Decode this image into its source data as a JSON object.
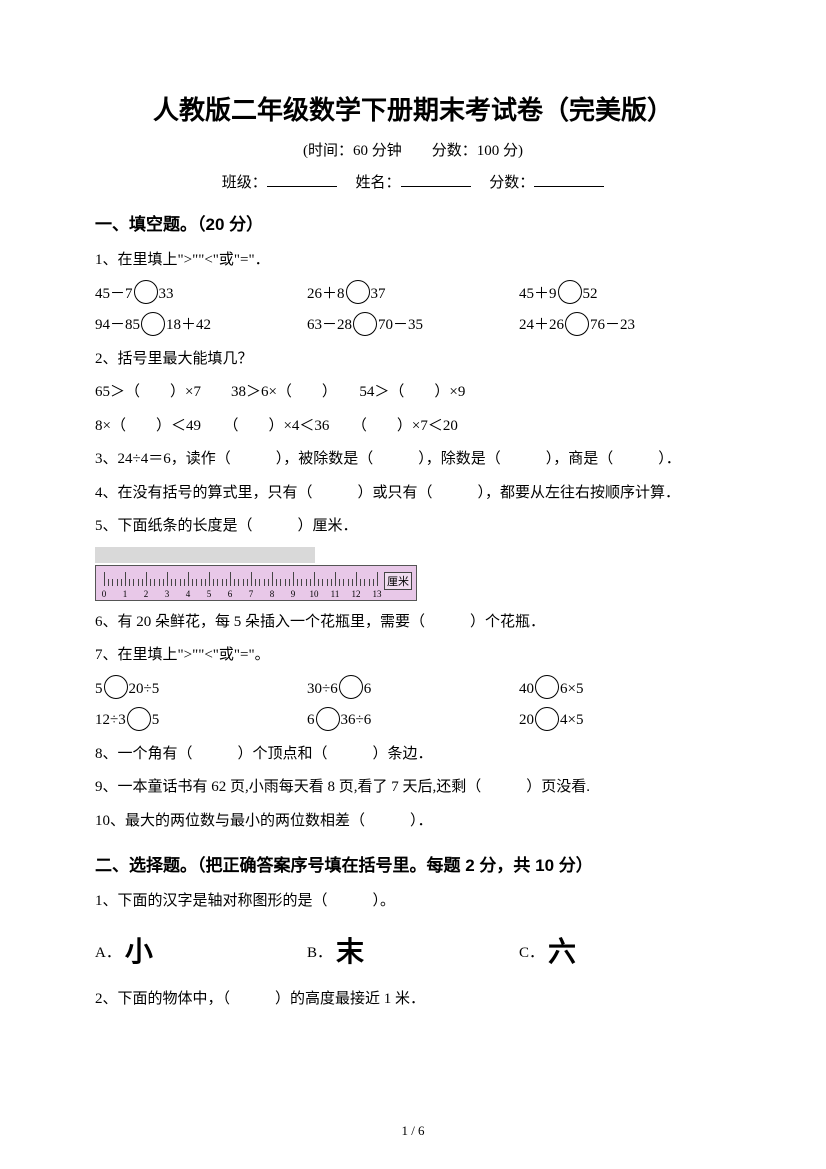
{
  "title": "人教版二年级数学下册期末考试卷（完美版）",
  "subtitle": "(时间：60 分钟　　分数：100 分)",
  "info": {
    "class": "班级：",
    "name": "姓名：",
    "score": "分数："
  },
  "s1": {
    "heading": "一、填空题。（20 分）",
    "q1": {
      "stem": "1、在里填上\">\"\"<\"或\"=\"．",
      "r1a": "45－7",
      "r1b": "33",
      "r1c": "26＋8",
      "r1d": "37",
      "r1e": "45＋9",
      "r1f": "52",
      "r2a": "94－85",
      "r2b": "18＋42",
      "r2c": "63－28",
      "r2d": "70－35",
      "r2e": "24＋26",
      "r2f": "76－23"
    },
    "q2": {
      "stem": "2、括号里最大能填几？",
      "l1": "65＞（　　）×7　　38＞6×（　　）　　54＞（　　）×9",
      "l2": "8×（　　）＜49　　（　　）×4＜36　　（　　）×7＜20"
    },
    "q3": "3、24÷4＝6，读作（　　　），被除数是（　　　），除数是（　　　），商是（　　　）．",
    "q4": "4、在没有括号的算式里，只有（　　　）或只有（　　　），都要从左往右按顺序计算．",
    "q5": "5、下面纸条的长度是（　　　）厘米．",
    "q6": " 6、有 20 朵鲜花，每 5 朵插入一个花瓶里，需要（　　　）个花瓶．",
    "q7": {
      "stem": "7、在里填上\">\"\"<\"或\"=\"。",
      "r1a": "5",
      "r1b": "20÷5",
      "r1c": "30÷6",
      "r1d": "6",
      "r1e": "40",
      "r1f": "6×5",
      "r2a": "12÷3",
      "r2b": "5",
      "r2c": "6",
      "r2d": "36÷6",
      "r2e": "20",
      "r2f": "4×5"
    },
    "q8": "8、一个角有（　　　）个顶点和（　　　）条边．",
    "q9": "9、一本童话书有 62 页,小雨每天看 8 页,看了 7 天后,还剩（　　　）页没看.",
    "q10": "10、最大的两位数与最小的两位数相差（　　　）．"
  },
  "s2": {
    "heading": "二、选择题。（把正确答案序号填在括号里。每题 2 分，共 10 分）",
    "q1": {
      "stem": "1、下面的汉字是轴对称图形的是（　　　）。",
      "a": "A．",
      "ach": "小",
      "b": "B．",
      "bch": "末",
      "c": "C．",
      "cch": "六"
    },
    "q2": "2、下面的物体中，（　　　）的高度最接近 1 米．"
  },
  "ruler": {
    "unit": "厘米",
    "ticks": [
      0,
      1,
      2,
      3,
      4,
      5,
      6,
      7,
      8,
      9,
      10,
      11,
      12,
      13
    ]
  },
  "pagenum": "1 / 6"
}
